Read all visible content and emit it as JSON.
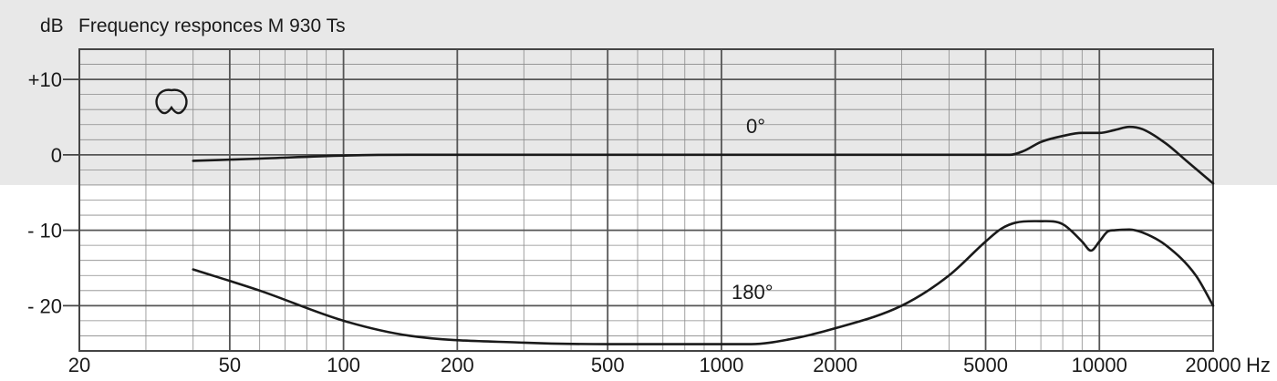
{
  "chart_data": {
    "type": "line",
    "title": "Frequency responces M 930 Ts",
    "ylabel": "dB",
    "xlabel": "Hz",
    "x_scale": "log",
    "xlim": [
      20,
      20000
    ],
    "ylim": [
      -26,
      14
    ],
    "grid": true,
    "x_ticks": [
      20,
      50,
      100,
      200,
      500,
      1000,
      2000,
      5000,
      10000,
      20000
    ],
    "x_tick_labels": [
      "20",
      "50",
      "100",
      "200",
      "500",
      "1000",
      "2000",
      "5000",
      "10000",
      "20000"
    ],
    "y_ticks": [
      10,
      0,
      -10,
      -20
    ],
    "y_tick_labels": [
      "+10",
      "0",
      "- 10",
      "- 20"
    ],
    "shaded_band": [
      -4,
      14
    ],
    "colors": {
      "line": "#1a1a1a",
      "band": "#e8e8e8",
      "grid": "#555555"
    },
    "pattern_icon": "cardioid-icon",
    "series": [
      {
        "name": "0°",
        "x": [
          40,
          60,
          100,
          150,
          300,
          1000,
          3000,
          5000,
          5800,
          6300,
          7000,
          8000,
          9000,
          10000,
          11000,
          12000,
          13000,
          15000,
          17000,
          20000
        ],
        "y": [
          -0.8,
          -0.5,
          -0.1,
          0,
          0,
          0,
          0,
          0,
          0,
          0.5,
          1.7,
          2.5,
          2.9,
          2.9,
          3.3,
          3.7,
          3.4,
          1.5,
          -0.8,
          -3.8
        ]
      },
      {
        "name": "180°",
        "x": [
          40,
          60,
          100,
          150,
          300,
          500,
          1000,
          1200,
          1500,
          2000,
          3000,
          4000,
          5000,
          5500,
          6000,
          7000,
          8000,
          9000,
          9500,
          10000,
          10500,
          11000,
          12000,
          13000,
          15000,
          18000,
          20000
        ],
        "y": [
          -15.2,
          -18,
          -22,
          -24,
          -24.9,
          -25.1,
          -25.1,
          -25.1,
          -24.5,
          -23,
          -20,
          -16,
          -11.5,
          -9.8,
          -9,
          -8.8,
          -9.2,
          -11.5,
          -12.7,
          -11.5,
          -10.2,
          -10,
          -9.9,
          -10.3,
          -12,
          -16,
          -20
        ]
      }
    ],
    "annotations": [
      "0°",
      "180°"
    ]
  }
}
